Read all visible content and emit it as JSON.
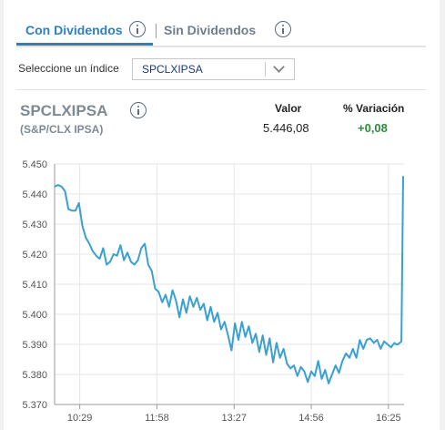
{
  "tabs": [
    {
      "label": "Con Dividendos",
      "active": true
    },
    {
      "label": "Sin Dividendos",
      "active": false
    }
  ],
  "selector": {
    "label": "Seleccione un índice",
    "value": "SPCLXIPSA"
  },
  "quote": {
    "symbol": "SPCLXIPSA",
    "name": "(S&P/CLX IPSA)",
    "valor_label": "Valor",
    "valor": "5.446,08",
    "variacion_label": "% Variación",
    "variacion": "+0,08"
  },
  "colors": {
    "accent": "#2f7fbf",
    "line": "#3aa0d0",
    "positive": "#2e8b3e"
  },
  "chart_data": {
    "type": "line",
    "ylim": [
      5370,
      5450
    ],
    "yticks": [
      "5.450",
      "5.440",
      "5.430",
      "5.420",
      "5.410",
      "5.400",
      "5.390",
      "5.380",
      "5.370"
    ],
    "ytick_values": [
      5450,
      5440,
      5430,
      5420,
      5410,
      5400,
      5390,
      5380,
      5370
    ],
    "xticks": [
      "10:29",
      "11:58",
      "13:27",
      "14:56",
      "16:25"
    ],
    "xtick_minutes": [
      629,
      718,
      807,
      896,
      985
    ],
    "xlim": [
      600,
      1003
    ],
    "grid": true,
    "series": [
      {
        "x": [
          600,
          604,
          608,
          612,
          616,
          620,
          624,
          628,
          632,
          636,
          640,
          644,
          648,
          652,
          656,
          660,
          664,
          668,
          672,
          676,
          680,
          684,
          688,
          692,
          696,
          700,
          704,
          708,
          712,
          716,
          720,
          724,
          728,
          732,
          736,
          740,
          744,
          748,
          752,
          756,
          760,
          764,
          768,
          772,
          776,
          780,
          784,
          788,
          792,
          796,
          800,
          804,
          808,
          812,
          816,
          820,
          824,
          828,
          832,
          836,
          840,
          844,
          848,
          852,
          856,
          860,
          864,
          868,
          872,
          876,
          880,
          884,
          888,
          892,
          896,
          900,
          904,
          908,
          912,
          916,
          920,
          924,
          928,
          932,
          936,
          940,
          944,
          948,
          952,
          956,
          960,
          964,
          968,
          972,
          976,
          980,
          984,
          988,
          992,
          994,
          996,
          998,
          1000,
          1002
        ],
        "y": [
          5442.5,
          5443.0,
          5442.5,
          5441.0,
          5435.0,
          5434.5,
          5434.5,
          5437.0,
          5429.5,
          5425.5,
          5423.5,
          5421.0,
          5419.5,
          5418.5,
          5422.0,
          5416.5,
          5417.5,
          5420.0,
          5419.5,
          5423.0,
          5418.0,
          5420.5,
          5417.5,
          5416.5,
          5418.0,
          5422.0,
          5423.5,
          5416.5,
          5414.5,
          5408.5,
          5407.5,
          5404.0,
          5406.5,
          5402.5,
          5408.0,
          5404.5,
          5399.0,
          5405.0,
          5400.5,
          5406.0,
          5402.5,
          5405.5,
          5401.5,
          5403.5,
          5398.0,
          5402.5,
          5397.5,
          5400.5,
          5395.0,
          5397.5,
          5393.0,
          5388.0,
          5397.0,
          5391.5,
          5397.5,
          5392.5,
          5396.0,
          5390.5,
          5393.5,
          5387.5,
          5393.0,
          5386.5,
          5392.0,
          5384.0,
          5390.5,
          5385.5,
          5388.5,
          5383.5,
          5382.0,
          5383.0,
          5379.5,
          5382.5,
          5381.0,
          5377.5,
          5381.0,
          5379.5,
          5384.5,
          5378.5,
          5381.5,
          5377.0,
          5380.0,
          5383.0,
          5380.5,
          5384.5,
          5387.0,
          5385.5,
          5388.5,
          5385.5,
          5391.5,
          5388.5,
          5391.5,
          5392.0,
          5390.5,
          5391.5,
          5388.5,
          5391.0,
          5390.0,
          5389.0,
          5390.5,
          5390.0,
          5390.0,
          5390.5,
          5391.0,
          5446.0
        ]
      }
    ]
  }
}
